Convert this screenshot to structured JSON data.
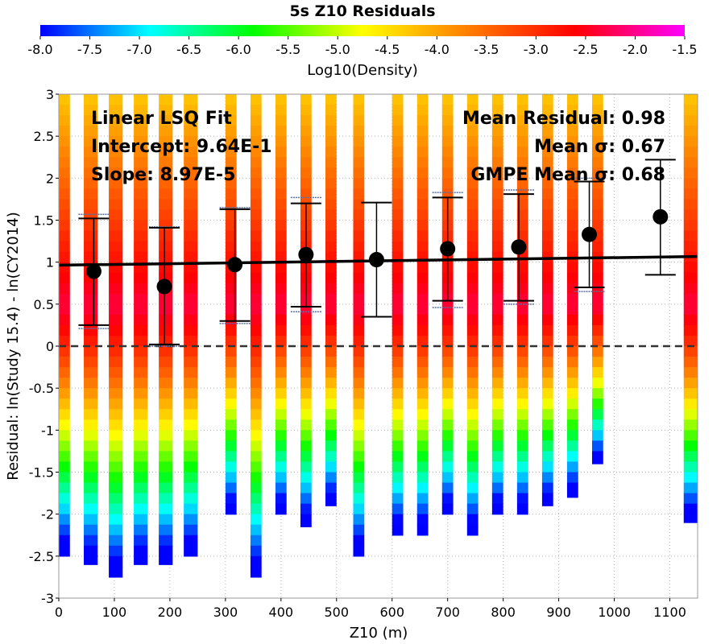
{
  "chart_data": {
    "type": "heatmap",
    "title": "5s Z10 Residuals",
    "xlabel": "Z10 (m)",
    "ylabel": "Residual: ln(Study 15.4) - ln(CY2014)",
    "xlim": [
      0,
      1150
    ],
    "ylim": [
      -3,
      3
    ],
    "x_ticks": [
      "0",
      "100",
      "200",
      "300",
      "400",
      "500",
      "600",
      "700",
      "800",
      "900",
      "1000",
      "1100"
    ],
    "y_ticks": [
      "3",
      "2.5",
      "2",
      "1.5",
      "1",
      "0.5",
      "0",
      "-0.5",
      "-1",
      "-1.5",
      "-2",
      "-2.5",
      "-3"
    ],
    "grid": true,
    "colorbar": {
      "label": "Log10(Density)",
      "min": -8.0,
      "max": -1.5,
      "ticks": [
        "-8.0",
        "-7.5",
        "-7.0",
        "-6.5",
        "-6.0",
        "-5.5",
        "-5.0",
        "-4.5",
        "-4.0",
        "-3.5",
        "-3.0",
        "-2.5",
        "-2.0",
        "-1.5"
      ]
    },
    "density_columns": [
      {
        "x0": 0,
        "x1": 20,
        "ymin": -2.5,
        "ymax": 3.0
      },
      {
        "x0": 45,
        "x1": 70,
        "ymin": -2.6,
        "ymax": 3.0
      },
      {
        "x0": 90,
        "x1": 115,
        "ymin": -2.75,
        "ymax": 3.0
      },
      {
        "x0": 135,
        "x1": 160,
        "ymin": -2.6,
        "ymax": 3.0
      },
      {
        "x0": 180,
        "x1": 205,
        "ymin": -2.6,
        "ymax": 3.0
      },
      {
        "x0": 225,
        "x1": 250,
        "ymin": -2.5,
        "ymax": 3.0
      },
      {
        "x0": 300,
        "x1": 320,
        "ymin": -2.0,
        "ymax": 3.0
      },
      {
        "x0": 345,
        "x1": 365,
        "ymin": -2.75,
        "ymax": 3.0
      },
      {
        "x0": 390,
        "x1": 410,
        "ymin": -2.0,
        "ymax": 3.0
      },
      {
        "x0": 435,
        "x1": 455,
        "ymin": -2.15,
        "ymax": 3.0
      },
      {
        "x0": 480,
        "x1": 500,
        "ymin": -1.9,
        "ymax": 3.0
      },
      {
        "x0": 530,
        "x1": 550,
        "ymin": -2.5,
        "ymax": 3.0
      },
      {
        "x0": 600,
        "x1": 620,
        "ymin": -2.25,
        "ymax": 3.0
      },
      {
        "x0": 645,
        "x1": 665,
        "ymin": -2.25,
        "ymax": 3.0
      },
      {
        "x0": 690,
        "x1": 710,
        "ymin": -2.0,
        "ymax": 3.0
      },
      {
        "x0": 735,
        "x1": 755,
        "ymin": -2.25,
        "ymax": 3.0
      },
      {
        "x0": 780,
        "x1": 800,
        "ymin": -2.0,
        "ymax": 3.0
      },
      {
        "x0": 825,
        "x1": 845,
        "ymin": -2.0,
        "ymax": 3.0
      },
      {
        "x0": 870,
        "x1": 890,
        "ymin": -1.9,
        "ymax": 3.0
      },
      {
        "x0": 915,
        "x1": 935,
        "ymin": -1.8,
        "ymax": 3.0
      },
      {
        "x0": 960,
        "x1": 980,
        "ymin": -1.4,
        "ymax": 3.0
      },
      {
        "x0": 1125,
        "x1": 1150,
        "ymin": -2.1,
        "ymax": 3.0
      }
    ],
    "bin_means": [
      {
        "x": 63,
        "mean": 0.89,
        "lower": 0.25,
        "upper": 1.52,
        "gmpe_lower": 0.21,
        "gmpe_upper": 1.57
      },
      {
        "x": 190,
        "mean": 0.71,
        "lower": 0.02,
        "upper": 1.41,
        "gmpe_lower": 0.0,
        "gmpe_upper": 1.42
      },
      {
        "x": 317,
        "mean": 0.97,
        "lower": 0.3,
        "upper": 1.63,
        "gmpe_lower": 0.27,
        "gmpe_upper": 1.65
      },
      {
        "x": 445,
        "mean": 1.09,
        "lower": 0.47,
        "upper": 1.7,
        "gmpe_lower": 0.41,
        "gmpe_upper": 1.77
      },
      {
        "x": 572,
        "mean": 1.03,
        "lower": 0.35,
        "upper": 1.71
      },
      {
        "x": 700,
        "mean": 1.16,
        "lower": 0.54,
        "upper": 1.77,
        "gmpe_lower": 0.46,
        "gmpe_upper": 1.83
      },
      {
        "x": 828,
        "mean": 1.18,
        "lower": 0.54,
        "upper": 1.81,
        "gmpe_lower": 0.5,
        "gmpe_upper": 1.86
      },
      {
        "x": 955,
        "mean": 1.33,
        "lower": 0.7,
        "upper": 1.96,
        "gmpe_lower": 0.65,
        "gmpe_upper": 2.0
      },
      {
        "x": 1083,
        "mean": 1.54,
        "lower": 0.85,
        "upper": 2.22
      }
    ],
    "fit_line": {
      "intercept": 0.964,
      "slope": 8.97e-05
    },
    "annotations": {
      "left": [
        "Linear LSQ Fit",
        "Intercept: 9.64E-1",
        "Slope: 8.97E-5"
      ],
      "right": [
        "Mean Residual: 0.98",
        "Mean σ: 0.67",
        "GMPE Mean σ: 0.68"
      ]
    },
    "colors": {
      "gmpe_bounds": "#5a6ea0",
      "markers": "#000000",
      "zero_line": "#333333",
      "gridlines": "#b8b8b8"
    }
  }
}
